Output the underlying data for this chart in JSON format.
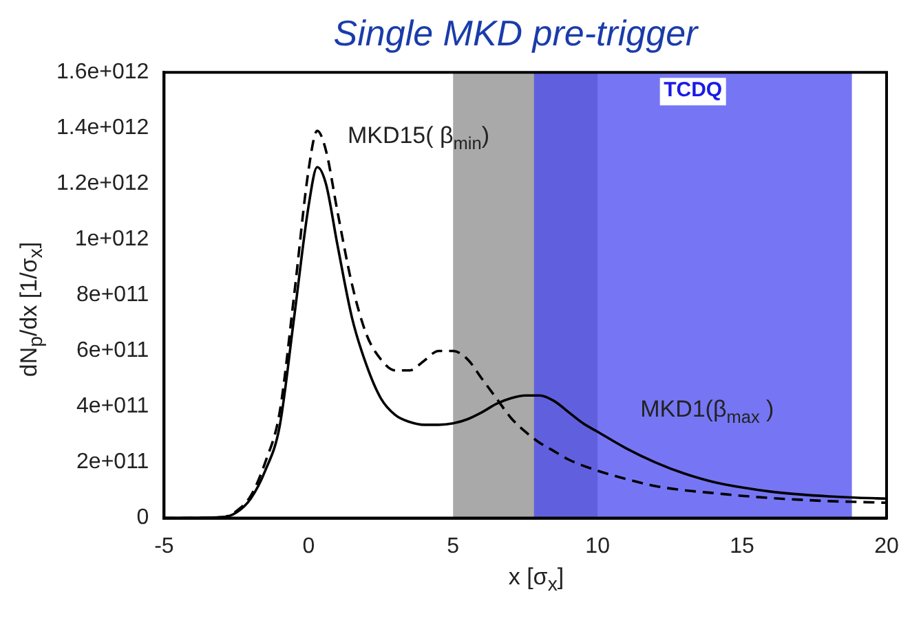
{
  "chart_data": {
    "type": "line",
    "title": "Single MKD pre-trigger",
    "xlabel": "x [σ$_{x}$]",
    "ylabel": "dN$_{p}$/dx  [1/σ$_{x}$]",
    "xlim": [
      -5,
      20
    ],
    "xticks": [
      -5,
      0,
      5,
      10,
      15,
      20
    ],
    "ylim": [
      0,
      1600000000000.0
    ],
    "yticks": [
      0,
      {
        "value": 200000000000.0,
        "label": "2e+011"
      },
      {
        "value": 400000000000.0,
        "label": "4e+011"
      },
      {
        "value": 600000000000.0,
        "label": "6e+011"
      },
      {
        "value": 800000000000.0,
        "label": "8e+011"
      },
      {
        "value": 1000000000000.0,
        "label": "1e+012"
      },
      {
        "value": 1200000000000.0,
        "label": "1.2e+012"
      },
      {
        "value": 1400000000000.0,
        "label": "1.4e+012"
      },
      {
        "value": 1600000000000.0,
        "label": "1.6e+012"
      }
    ],
    "grid": false,
    "marker": "none",
    "bands": [
      {
        "axis": "x",
        "from": 5,
        "to": 10,
        "color": "#8c8c8c"
      },
      {
        "axis": "x",
        "from": 7.8,
        "to": 18.8,
        "label": "TCDQ",
        "color": "#4848f0"
      }
    ],
    "series": [
      {
        "name": "MKD1(β$_{max}$ )",
        "color": "#000000",
        "line_style": "solid",
        "x": [
          -5,
          -3,
          -2.5,
          -2,
          -1.5,
          -1,
          -0.5,
          0,
          0.3,
          0.6,
          1,
          1.5,
          2,
          2.5,
          3,
          3.5,
          4,
          4.5,
          5,
          5.5,
          6,
          6.5,
          7,
          7.5,
          8,
          8.5,
          9,
          9.5,
          10,
          11,
          12,
          13,
          14,
          15,
          16,
          17,
          18,
          19,
          20
        ],
        "values": [
          0,
          3000000000.0,
          20000000000.0,
          70000000000.0,
          170000000000.0,
          330000000000.0,
          720000000000.0,
          1120000000000.0,
          1260000000000.0,
          1200000000000.0,
          980000000000.0,
          720000000000.0,
          550000000000.0,
          430000000000.0,
          370000000000.0,
          345000000000.0,
          335000000000.0,
          335000000000.0,
          340000000000.0,
          355000000000.0,
          380000000000.0,
          410000000000.0,
          430000000000.0,
          440000000000.0,
          440000000000.0,
          420000000000.0,
          380000000000.0,
          340000000000.0,
          310000000000.0,
          250000000000.0,
          200000000000.0,
          160000000000.0,
          130000000000.0,
          110000000000.0,
          95000000000.0,
          85000000000.0,
          78000000000.0,
          73000000000.0,
          70000000000.0
        ]
      },
      {
        "name": "MKD15( β$_{min}$)",
        "color": "#000000",
        "line_style": "dashed",
        "x": [
          -5,
          -3,
          -2.5,
          -2,
          -1.5,
          -1,
          -0.5,
          0,
          0.3,
          0.6,
          1,
          1.5,
          2,
          2.5,
          3,
          3.5,
          4,
          4.5,
          5,
          5.5,
          6,
          6.5,
          7,
          7.5,
          8,
          8.5,
          9,
          10,
          11,
          12,
          13,
          14,
          15,
          16,
          17,
          18,
          19,
          20
        ],
        "values": [
          0,
          3000000000.0,
          25000000000.0,
          80000000000.0,
          200000000000.0,
          380000000000.0,
          800000000000.0,
          1250000000000.0,
          1390000000000.0,
          1320000000000.0,
          1100000000000.0,
          840000000000.0,
          660000000000.0,
          570000000000.0,
          530000000000.0,
          530000000000.0,
          565000000000.0,
          600000000000.0,
          600000000000.0,
          570000000000.0,
          500000000000.0,
          430000000000.0,
          360000000000.0,
          310000000000.0,
          270000000000.0,
          240000000000.0,
          210000000000.0,
          170000000000.0,
          140000000000.0,
          115000000000.0,
          100000000000.0,
          90000000000.0,
          80000000000.0,
          72000000000.0,
          66000000000.0,
          61000000000.0,
          58000000000.0,
          55000000000.0
        ]
      }
    ]
  }
}
